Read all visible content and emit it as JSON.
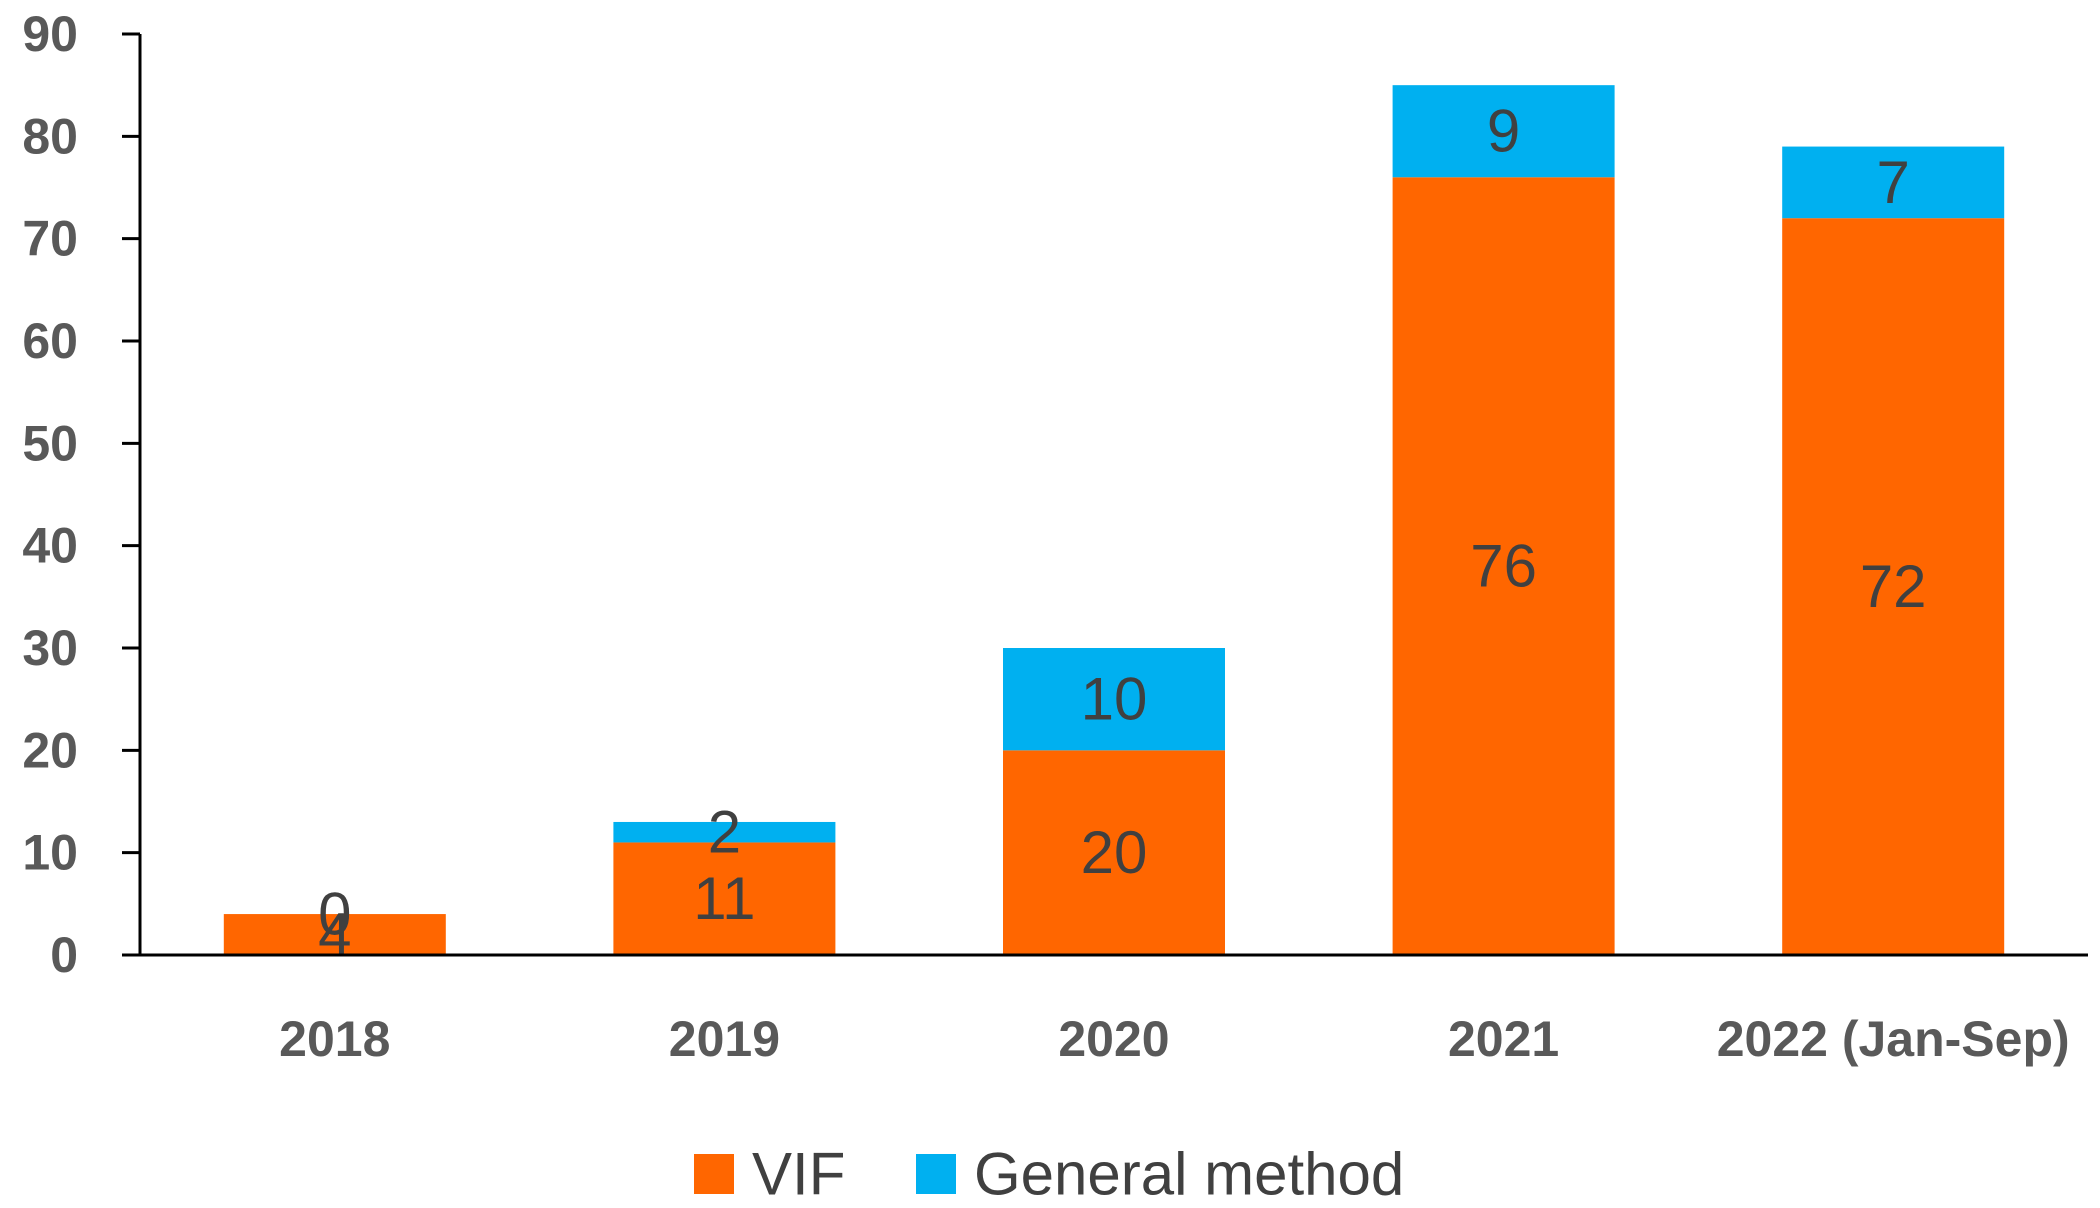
{
  "chart_data": {
    "type": "bar",
    "stacked": true,
    "categories": [
      "2018",
      "2019",
      "2020",
      "2021",
      "2022 (Jan-Sep)"
    ],
    "series": [
      {
        "name": "VIF",
        "color": "#ff6600",
        "values": [
          4,
          11,
          20,
          76,
          72
        ]
      },
      {
        "name": "General method",
        "color": "#00b0f0",
        "values": [
          0,
          2,
          10,
          9,
          7
        ]
      }
    ],
    "ylim": [
      0,
      90
    ],
    "yticks": [
      0,
      10,
      20,
      30,
      40,
      50,
      60,
      70,
      80,
      90
    ],
    "data_labels": true,
    "legend_position": "bottom",
    "grid": false
  }
}
